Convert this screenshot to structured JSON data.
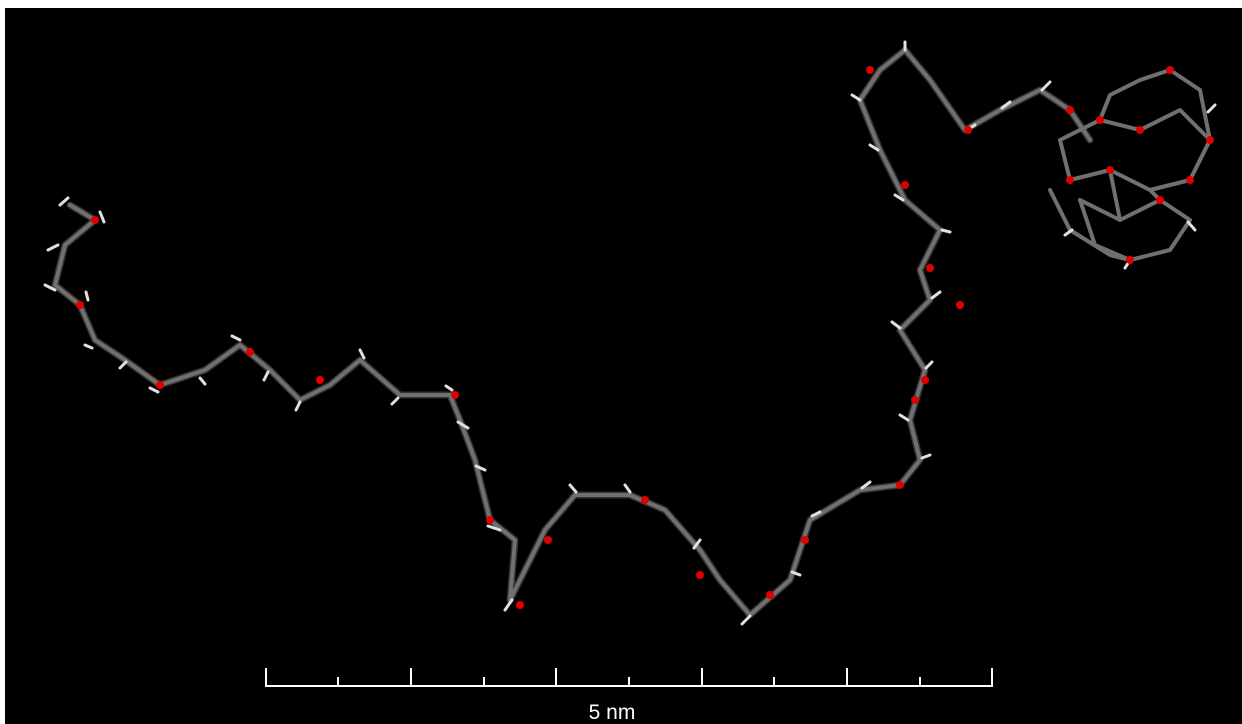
{
  "scale_bar": {
    "label": "5 nm"
  }
}
